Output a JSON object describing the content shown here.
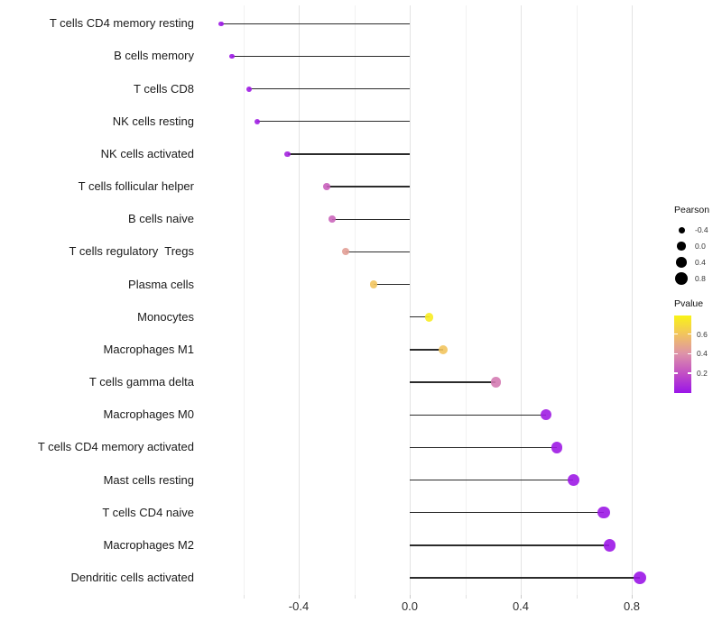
{
  "chart_data": {
    "type": "scatter",
    "subtype": "lollipop",
    "title": "",
    "xlabel": "",
    "ylabel": "",
    "x_axis": {
      "tick_values": [
        -0.4,
        0.0,
        0.4,
        0.8
      ],
      "tick_labels": [
        "-0.4",
        "0.0",
        "0.4",
        "0.8"
      ],
      "minor_tick_values": [
        -0.6,
        -0.2,
        0.2,
        0.6
      ],
      "range": [
        -0.755,
        0.9
      ],
      "grid": true
    },
    "series": [
      {
        "label": "T cells CD4 memory resting",
        "pearson": -0.68,
        "pvalue": 0.01
      },
      {
        "label": "B cells memory",
        "pearson": -0.64,
        "pvalue": 0.012
      },
      {
        "label": "T cells CD8",
        "pearson": -0.58,
        "pvalue": 0.02
      },
      {
        "label": "NK cells resting",
        "pearson": -0.55,
        "pvalue": 0.03
      },
      {
        "label": "NK cells activated",
        "pearson": -0.44,
        "pvalue": 0.05
      },
      {
        "label": "T cells follicular helper",
        "pearson": -0.3,
        "pvalue": 0.25
      },
      {
        "label": "B cells naive",
        "pearson": -0.28,
        "pvalue": 0.27
      },
      {
        "label": "T cells regulatory  Tregs",
        "pearson": -0.23,
        "pvalue": 0.45
      },
      {
        "label": "Plasma cells",
        "pearson": -0.13,
        "pvalue": 0.6
      },
      {
        "label": "Monocytes",
        "pearson": 0.07,
        "pvalue": 0.76
      },
      {
        "label": "Macrophages M1",
        "pearson": 0.12,
        "pvalue": 0.6
      },
      {
        "label": "T cells gamma delta",
        "pearson": 0.31,
        "pvalue": 0.33
      },
      {
        "label": "Macrophages M0",
        "pearson": 0.49,
        "pvalue": 0.03
      },
      {
        "label": "T cells CD4 memory activated",
        "pearson": 0.53,
        "pvalue": 0.02
      },
      {
        "label": "Mast cells resting",
        "pearson": 0.59,
        "pvalue": 0.015
      },
      {
        "label": "T cells CD4 naive",
        "pearson": 0.7,
        "pvalue": 0.01
      },
      {
        "label": "Macrophages M2",
        "pearson": 0.72,
        "pvalue": 0.008
      },
      {
        "label": "Dendritic cells activated",
        "pearson": 0.83,
        "pvalue": 0.005
      }
    ],
    "legends": {
      "size": {
        "title": "Pearson",
        "entry_labels": [
          "-0.4",
          "0.0",
          "0.4",
          "0.8"
        ],
        "entry_values": [
          -0.4,
          0.0,
          0.4,
          0.8
        ],
        "dot_color": "#000000"
      },
      "color": {
        "title": "Pvalue",
        "tick_labels": [
          "0.6",
          "0.4",
          "0.2"
        ],
        "tick_values": [
          0.6,
          0.4,
          0.2
        ],
        "range": [
          0.0,
          0.79
        ],
        "gradient_stops": [
          {
            "p": 0.0,
            "color": "#9a15e8"
          },
          {
            "p": 0.2,
            "color": "#c24fc4"
          },
          {
            "p": 0.4,
            "color": "#dd92a9"
          },
          {
            "p": 0.6,
            "color": "#f2c45e"
          },
          {
            "p": 0.79,
            "color": "#f9f316"
          }
        ]
      }
    },
    "style": {
      "background": "#ffffff",
      "stem_color": "#2b2b2b",
      "grid_major_color": "#e3e3e3",
      "grid_minor_color": "#f1f1f1",
      "axis_text_color": "#303030",
      "label_text_color": "#1a1a1a"
    }
  }
}
